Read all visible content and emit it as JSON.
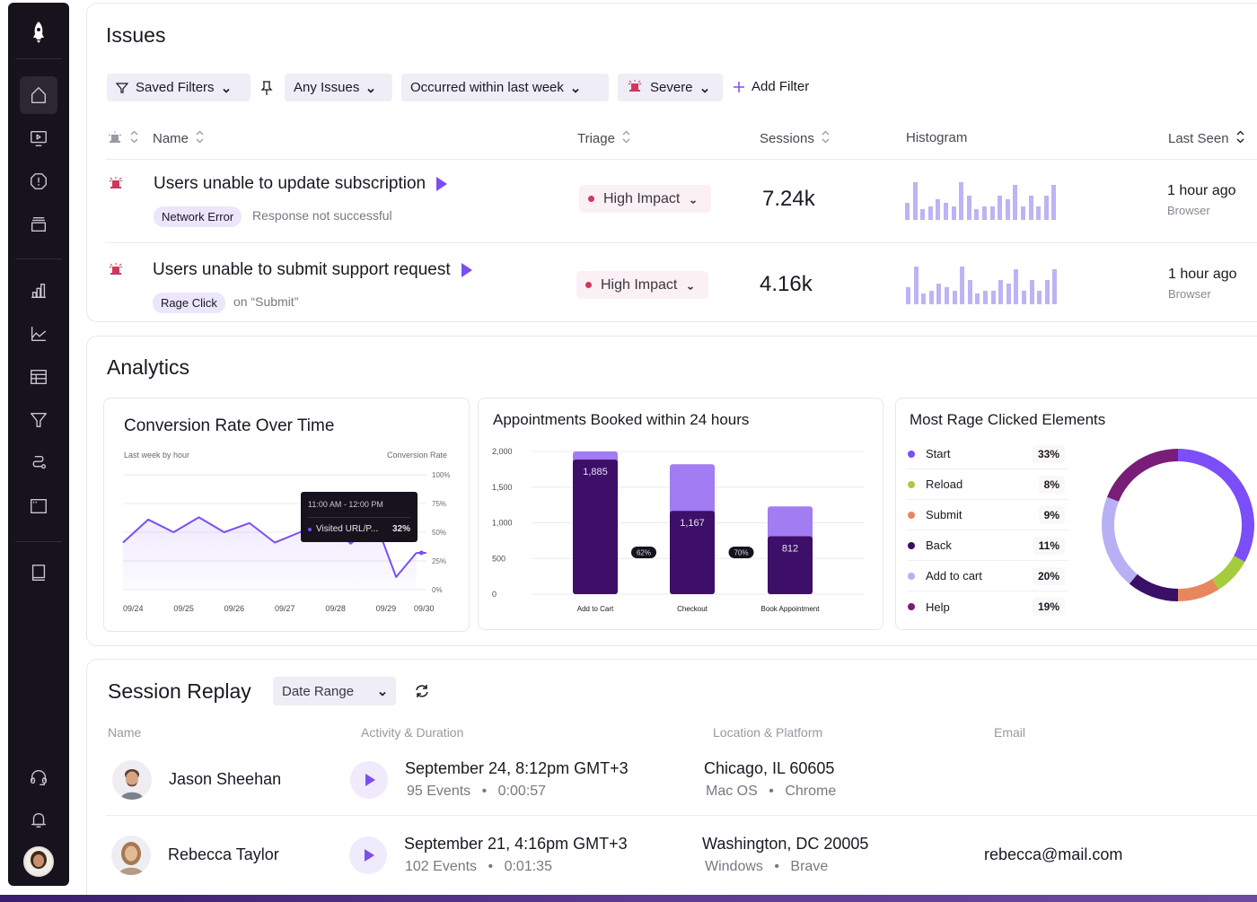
{
  "sidebar": {
    "items": [
      {
        "name": "home",
        "active": true
      },
      {
        "name": "session-replay"
      },
      {
        "name": "issues"
      },
      {
        "name": "stack"
      },
      {
        "name": "bar-chart"
      },
      {
        "name": "line-chart"
      },
      {
        "name": "table"
      },
      {
        "name": "funnel"
      },
      {
        "name": "journey"
      },
      {
        "name": "window"
      },
      {
        "name": "book"
      },
      {
        "name": "support"
      },
      {
        "name": "notifications"
      }
    ]
  },
  "issues": {
    "title": "Issues",
    "filters": {
      "saved_filters": "Saved Filters",
      "any_issues": "Any Issues",
      "occurred": "Occurred within last week",
      "severe": "Severe",
      "add_filter": "Add Filter"
    },
    "columns": {
      "name": "Name",
      "triage": "Triage",
      "sessions": "Sessions",
      "histogram": "Histogram",
      "last_seen": "Last Seen"
    },
    "rows": [
      {
        "title": "Users unable to update subscription",
        "tag": "Network Error",
        "note": "Response not successful",
        "triage": "High Impact",
        "sessions": "7.24k",
        "histogram": [
          45,
          100,
          28,
          36,
          55,
          45,
          36,
          100,
          65,
          28,
          36,
          36,
          65,
          55,
          92,
          36,
          65,
          36,
          65,
          92
        ],
        "last_seen": "1 hour ago",
        "last_seen_sub": "Browser"
      },
      {
        "title": "Users unable to submit support request",
        "tag": "Rage Click",
        "note": "on “Submit”",
        "triage": "High Impact",
        "sessions": "4.16k",
        "histogram": [
          45,
          100,
          28,
          36,
          55,
          45,
          36,
          100,
          65,
          28,
          36,
          36,
          65,
          55,
          92,
          36,
          65,
          36,
          65,
          92
        ],
        "last_seen": "1 hour ago",
        "last_seen_sub": "Browser"
      }
    ]
  },
  "analytics": {
    "title": "Analytics"
  },
  "chart_data": [
    {
      "type": "line",
      "title": "Conversion Rate Over Time",
      "subtitle_left": "Last week by hour",
      "subtitle_right": "Conversion Rate",
      "x_ticks": [
        "09/24",
        "09/25",
        "09/26",
        "09/27",
        "09/28",
        "09/29",
        "09/30"
      ],
      "y_ticks": [
        "100%",
        "75%",
        "50%",
        "25%",
        "0%"
      ],
      "ylim": [
        0,
        100
      ],
      "x": [
        0,
        0.5,
        1.0,
        1.5,
        2.0,
        2.5,
        3.0,
        3.5,
        4.0,
        4.5,
        5.0,
        5.4,
        5.8,
        6.0
      ],
      "values": [
        41,
        61,
        50,
        63,
        50,
        58,
        41,
        50,
        61,
        40,
        58,
        11,
        32,
        32
      ],
      "dashed_from_index": 12,
      "grid": true,
      "tooltip": {
        "time": "11:00 AM - 12:00 PM",
        "label": "Visited URL/P...",
        "value": "32%"
      }
    },
    {
      "type": "bar",
      "title": "Appointments Booked within 24 hours",
      "categories": [
        "Add to Cart",
        "Checkout",
        "Book Appointment"
      ],
      "series": [
        {
          "name": "completed",
          "values": [
            1885,
            1167,
            812
          ]
        },
        {
          "name": "total",
          "values": [
            2000,
            1820,
            1230
          ]
        }
      ],
      "data_labels": [
        "1,885",
        "1,167",
        "812"
      ],
      "conversion_labels": [
        "62%",
        "70%"
      ],
      "y_ticks": [
        "2,000",
        "1,500",
        "1,000",
        "500",
        "0"
      ],
      "ylim": [
        0,
        2000
      ],
      "grid": true
    },
    {
      "type": "pie",
      "title": "Most Rage Clicked Elements",
      "donut": true,
      "slices": [
        {
          "label": "Start",
          "value": 33,
          "pct": "33%",
          "color": "#7b4ef7"
        },
        {
          "label": "Reload",
          "value": 8,
          "pct": "8%",
          "color": "#a6cc3d"
        },
        {
          "label": "Submit",
          "value": 9,
          "pct": "9%",
          "color": "#e8875e"
        },
        {
          "label": "Back",
          "value": 11,
          "pct": "11%",
          "color": "#3a0f66"
        },
        {
          "label": "Add to cart",
          "value": 20,
          "pct": "20%",
          "color": "#b8b0f5"
        },
        {
          "label": "Help",
          "value": 19,
          "pct": "19%",
          "color": "#781d78"
        }
      ],
      "legend": "left"
    }
  ],
  "session_replay": {
    "title": "Session Replay",
    "date_range": "Date Range",
    "columns": {
      "name": "Name",
      "activity": "Activity & Duration",
      "location": "Location & Platform",
      "email": "Email"
    },
    "rows": [
      {
        "name": "Jason Sheehan",
        "date": "September 24, 8:12pm GMT+3",
        "events": "95 Events",
        "duration": "0:00:57",
        "location": "Chicago, IL 60605",
        "os": "Mac OS",
        "browser": "Chrome",
        "email": ""
      },
      {
        "name": "Rebecca Taylor",
        "date": "September 21, 4:16pm GMT+3",
        "events": "102 Events",
        "duration": "0:01:35",
        "location": "Washington, DC 20005",
        "os": "Windows",
        "browser": "Brave",
        "email": "rebecca@mail.com"
      }
    ]
  },
  "colors": {
    "accent": "#7b4ef0",
    "sidebar_bg": "#16131c",
    "filter_bg": "#efedf5",
    "triage_dot": "#d1365d",
    "histogram_bar": "#bcb4f4",
    "bar_dark": "#3d0f68",
    "bar_light": "#a17cf2",
    "line": "#7b4ef0"
  }
}
